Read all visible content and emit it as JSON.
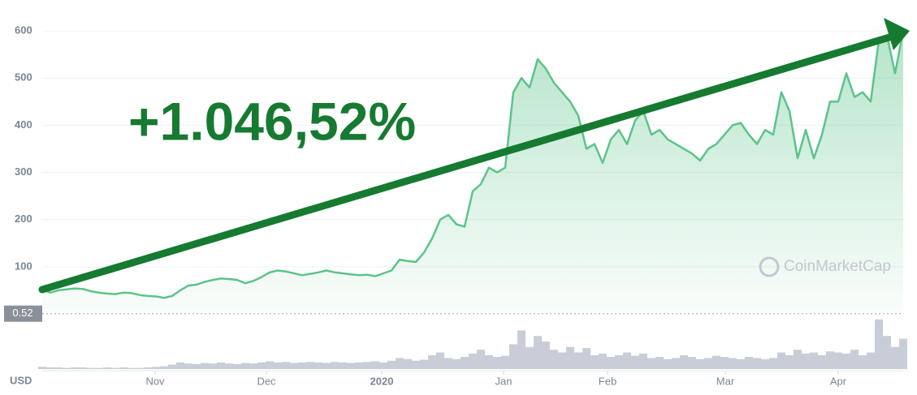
{
  "chart_data": {
    "type": "line",
    "annotation": "+1.046,52%",
    "watermark": "CoinMarketCap",
    "currency_label": "USD",
    "reference_line": 0.52,
    "x": [
      0,
      1,
      2,
      3,
      4,
      5,
      6,
      7,
      8,
      9,
      10,
      11,
      12,
      13,
      14,
      15,
      16,
      17,
      18,
      19,
      20,
      21,
      22,
      23,
      24,
      25,
      26,
      27,
      28,
      29,
      30,
      31,
      32,
      33,
      34,
      35,
      36,
      37,
      38,
      39,
      40,
      41,
      42,
      43,
      44,
      45,
      46,
      47,
      48,
      49,
      50,
      51,
      52,
      53,
      54,
      55,
      56,
      57,
      58,
      59,
      60,
      61,
      62,
      63,
      64,
      65,
      66,
      67,
      68,
      69,
      70,
      71,
      72,
      73,
      74,
      75,
      76,
      77,
      78,
      79,
      80,
      81,
      82,
      83,
      84,
      85,
      86,
      87,
      88,
      89,
      90,
      91,
      92,
      93,
      94,
      95,
      96,
      97,
      98,
      99,
      100,
      101,
      102,
      103,
      104,
      105,
      106
    ],
    "series": [
      {
        "name": "Price",
        "color": "#5cc489",
        "values": [
          52,
          45,
          50,
          52,
          54,
          53,
          48,
          45,
          43,
          42,
          45,
          44,
          40,
          38,
          37,
          34,
          38,
          50,
          60,
          62,
          68,
          72,
          75,
          74,
          72,
          65,
          70,
          78,
          88,
          92,
          90,
          86,
          82,
          85,
          88,
          92,
          88,
          86,
          84,
          82,
          83,
          80,
          86,
          92,
          115,
          112,
          110,
          130,
          160,
          200,
          210,
          190,
          185,
          260,
          275,
          310,
          300,
          310,
          470,
          500,
          480,
          540,
          520,
          490,
          470,
          450,
          420,
          350,
          360,
          320,
          370,
          390,
          360,
          410,
          430,
          380,
          390,
          370,
          360,
          350,
          340,
          325,
          350,
          360,
          380,
          400,
          405,
          380,
          360,
          390,
          380,
          470,
          430,
          330,
          390,
          330,
          380,
          450,
          450,
          510,
          460,
          470,
          450,
          580,
          590,
          510,
          600
        ]
      },
      {
        "name": "Volume",
        "color": "#c9cdd8",
        "values": [
          4,
          3,
          3,
          2,
          3,
          3,
          2,
          2,
          3,
          2,
          3,
          2,
          2,
          3,
          4,
          5,
          8,
          12,
          10,
          9,
          11,
          10,
          12,
          10,
          9,
          11,
          10,
          12,
          14,
          12,
          13,
          11,
          12,
          13,
          12,
          11,
          13,
          12,
          11,
          12,
          13,
          14,
          12,
          15,
          20,
          18,
          15,
          17,
          25,
          30,
          20,
          18,
          22,
          28,
          35,
          25,
          22,
          24,
          45,
          70,
          40,
          60,
          50,
          35,
          30,
          40,
          30,
          38,
          25,
          28,
          22,
          25,
          30,
          24,
          28,
          20,
          22,
          18,
          20,
          25,
          22,
          18,
          20,
          24,
          22,
          20,
          18,
          22,
          20,
          18,
          20,
          30,
          25,
          35,
          28,
          30,
          25,
          32,
          30,
          28,
          35,
          25,
          30,
          90,
          60,
          40,
          55
        ]
      }
    ],
    "xlim": [
      0,
      106
    ],
    "xticks": [
      {
        "value": 13.9,
        "label": "Nov"
      },
      {
        "value": 27.6,
        "label": "Dec"
      },
      {
        "value": 41.8,
        "label": "2020"
      },
      {
        "value": 56.8,
        "label": "Jan"
      },
      {
        "value": 69.6,
        "label": "Feb"
      },
      {
        "value": 84.1,
        "label": "Mar"
      },
      {
        "value": 98,
        "label": "Apr"
      }
    ],
    "ylim": [
      0,
      650
    ],
    "yticks": [
      100,
      200,
      300,
      400,
      500,
      600
    ],
    "volume_lim": [
      0,
      100
    ],
    "grid": true
  }
}
